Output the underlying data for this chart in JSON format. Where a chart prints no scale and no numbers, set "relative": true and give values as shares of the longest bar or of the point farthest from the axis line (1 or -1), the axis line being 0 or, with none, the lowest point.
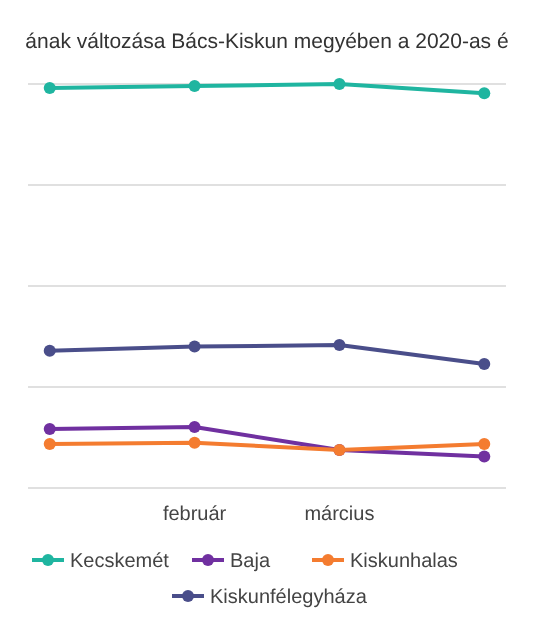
{
  "chart_data": {
    "type": "line",
    "title": "ának változása Bács-Kiskun megyében a 2020-as é",
    "relative": true,
    "categories": [
      null,
      "február",
      "március",
      null
    ],
    "series": [
      {
        "name": "Kecskemét",
        "color": "#1fb5a0",
        "values": [
          0.99,
          0.995,
          1.0,
          0.977
        ]
      },
      {
        "name": "Baja",
        "color": "#7030a0",
        "values": [
          0.146,
          0.151,
          0.094,
          0.078
        ]
      },
      {
        "name": "Kiskunhalas",
        "color": "#f47c30",
        "values": [
          0.109,
          0.112,
          0.094,
          0.109
        ]
      },
      {
        "name": "Kiskunfélegyháza",
        "color": "#4a4e8a",
        "values": [
          0.34,
          0.35,
          0.354,
          0.307
        ]
      }
    ],
    "grid": true,
    "legend": "bottom",
    "marker": "circle",
    "line_style": "solid"
  }
}
